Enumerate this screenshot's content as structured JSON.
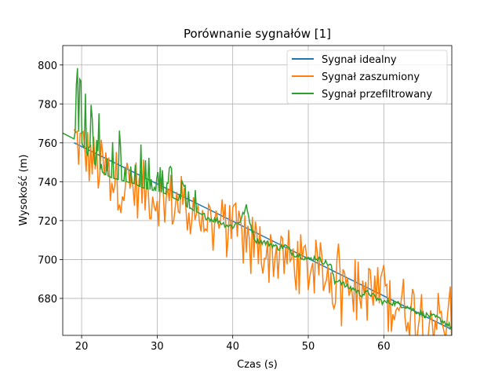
{
  "chart_data": {
    "type": "line",
    "title": "Porównanie sygnałów [1]",
    "xlabel": "Czas (s)",
    "ylabel": "Wysokość (m)",
    "xlim": [
      17.5,
      69
    ],
    "ylim": [
      661,
      810
    ],
    "xticks": [
      20,
      30,
      40,
      50,
      60
    ],
    "yticks": [
      680,
      700,
      720,
      740,
      760,
      780,
      800
    ],
    "grid": true,
    "legend_position": "upper right",
    "series": [
      {
        "name": "Sygnał idealny",
        "color": "#1f77b4",
        "x": [
          19,
          69
        ],
        "y": [
          760,
          664
        ]
      },
      {
        "name": "Sygnał zaszumiony",
        "color": "#ff7f0e",
        "x_start": 19,
        "x_step": 0.2,
        "trend": [
          [
            19,
            762
          ],
          [
            22,
            748
          ],
          [
            25,
            740
          ],
          [
            30,
            733
          ],
          [
            35,
            725
          ],
          [
            40,
            714
          ],
          [
            45,
            704
          ],
          [
            50,
            696
          ],
          [
            55,
            688
          ],
          [
            60,
            680
          ],
          [
            65,
            673
          ],
          [
            69,
            667
          ]
        ],
        "noise_amplitude": 16
      },
      {
        "name": "Sygnał przefiltrowany",
        "color": "#2ca02c",
        "x": [
          17.5,
          19,
          19.3,
          20,
          21,
          22,
          23,
          24,
          25,
          26,
          27,
          28,
          29,
          30,
          31,
          32,
          33,
          34,
          35,
          36,
          37,
          38,
          39,
          40,
          41,
          41.8,
          42.5,
          43,
          44,
          45,
          46,
          47,
          48,
          49,
          50,
          51,
          52,
          53,
          53.5,
          54,
          55,
          56,
          57,
          58,
          59,
          60,
          61,
          62,
          63,
          64,
          65,
          66,
          67,
          68,
          69
        ],
        "y": [
          765,
          762,
          770,
          760,
          752,
          748,
          744,
          742,
          741,
          740,
          739,
          737,
          736,
          735,
          734,
          732,
          730,
          727,
          725,
          723,
          721,
          720,
          718,
          717,
          720,
          727,
          716,
          710,
          709,
          708,
          706,
          707,
          703,
          702,
          700,
          701,
          699,
          697,
          688,
          690,
          686,
          685,
          682,
          683,
          680,
          678,
          678,
          677,
          676,
          674,
          672,
          671,
          670,
          668,
          665
        ],
        "spike_region": [
          19,
          36
        ],
        "spike_amplitude": 35
      }
    ]
  }
}
